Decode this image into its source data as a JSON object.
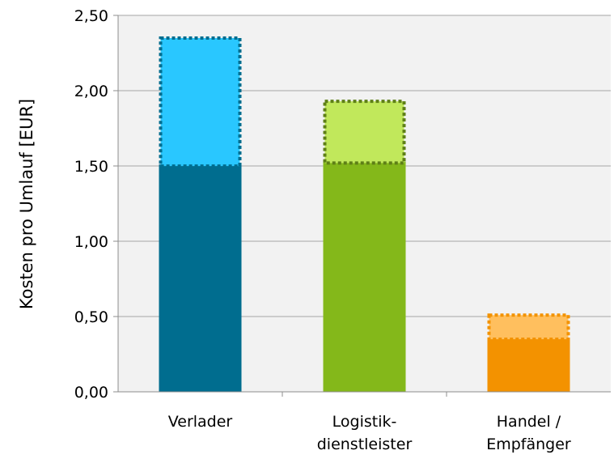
{
  "chart_data": {
    "type": "bar",
    "stacked": true,
    "categories": [
      [
        "Verlader"
      ],
      [
        "Logistik-",
        "dienstleister"
      ],
      [
        "Handel /",
        "Empfänger"
      ]
    ],
    "series": [
      {
        "values": [
          1.51,
          1.53,
          0.36
        ],
        "colors": [
          "#006d8f",
          "#84b81a",
          "#f39200"
        ],
        "dotted": false
      },
      {
        "values": [
          0.85,
          0.41,
          0.16
        ],
        "colors": [
          "#29c7ff",
          "#c1e85b",
          "#ffbf5e"
        ],
        "border_colors": [
          "#006d8f",
          "#5e7f17",
          "#f39200"
        ],
        "dotted": true
      }
    ],
    "ylabel": "Kosten pro Umlauf [EUR]",
    "ylim": [
      0,
      2.5
    ],
    "yticks": [
      "0,00",
      "0,50",
      "1,00",
      "1,50",
      "2,00",
      "2,50"
    ],
    "ytick_values": [
      0,
      0.5,
      1.0,
      1.5,
      2.0,
      2.5
    ],
    "grid": true,
    "plot_background": "#f2f2f2",
    "legend": "none"
  }
}
